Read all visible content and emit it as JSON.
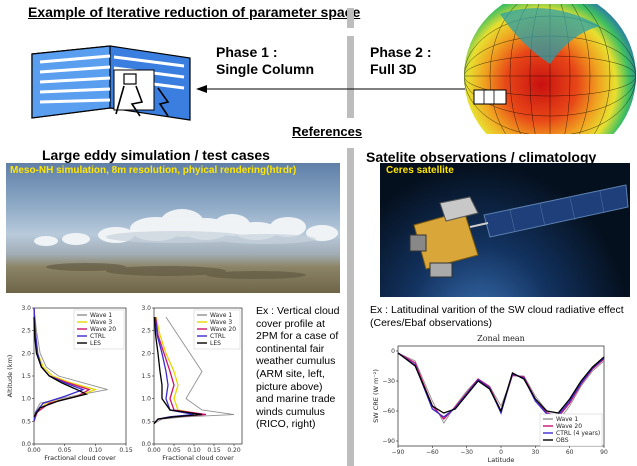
{
  "header": {
    "title": "Example of Iterative reduction of parameter space",
    "phase1_line1": "Phase 1 :",
    "phase1_line2": "Single Column",
    "phase2_line1": "Phase 2 :",
    "phase2_line2": "Full 3D",
    "references": "References"
  },
  "left": {
    "section_title": "Large eddy simulation / test cases",
    "photo_caption": "Meso-NH simulation, 8m resolution, phyical rendering(htrdr)",
    "description": "Ex : Vertical cloud cover profile at 2PM  for a case of continental fair weather cumulus (ARM site, left, picture above) and marine trade winds cumulus (RICO, right)"
  },
  "right": {
    "section_title": "Satelite observations / climatology",
    "photo_caption": "Ceres satellite",
    "description": "Ex : Latitudinal varition of the SW cloud radiative effect (Ceres/Ebaf observations)"
  },
  "colors": {
    "wave1": "#909090",
    "wave3": "#e8d800",
    "wave20": "#cc1070",
    "ctrl": "#3a2ad0",
    "les": "#000000",
    "obs": "#000000",
    "divider": "#bdbdbd"
  },
  "chart_data": [
    {
      "type": "line",
      "title": "",
      "xlabel": "Fractional cloud cover",
      "ylabel": "Altitude (km)",
      "xlim": [
        0,
        0.15
      ],
      "ylim": [
        0,
        3.0
      ],
      "xticks": [
        "0.00",
        "0.05",
        "0.10",
        "0.15"
      ],
      "yticks": [
        "0.0",
        "0.5",
        "1.0",
        "1.5",
        "2.0",
        "2.5",
        "3.0"
      ],
      "legend": [
        "Wave 1",
        "Wave 3",
        "Wave 20",
        "CTRL",
        "LES"
      ],
      "legend_position": "top-right",
      "series": [
        {
          "name": "Wave 1",
          "x": [
            0,
            0.002,
            0.01,
            0.06,
            0.12,
            0.08,
            0.04,
            0.02,
            0.01,
            0.004,
            0
          ],
          "y": [
            0.5,
            0.7,
            0.9,
            1.05,
            1.2,
            1.35,
            1.5,
            1.7,
            2.0,
            2.5,
            3.0
          ]
        },
        {
          "name": "Wave 3",
          "x": [
            0,
            0.004,
            0.02,
            0.07,
            0.1,
            0.06,
            0.03,
            0.015,
            0.006,
            0.002,
            0
          ],
          "y": [
            0.5,
            0.7,
            0.9,
            1.05,
            1.2,
            1.35,
            1.5,
            1.7,
            2.0,
            2.5,
            3.0
          ]
        },
        {
          "name": "Wave 20",
          "x": [
            0,
            0.005,
            0.025,
            0.07,
            0.09,
            0.055,
            0.025,
            0.012,
            0.005,
            0.002,
            0
          ],
          "y": [
            0.5,
            0.7,
            0.9,
            1.05,
            1.2,
            1.35,
            1.5,
            1.7,
            2.0,
            2.5,
            3.0
          ]
        },
        {
          "name": "CTRL",
          "x": [
            0,
            0.003,
            0.015,
            0.05,
            0.08,
            0.05,
            0.025,
            0.012,
            0.006,
            0.002,
            0
          ],
          "y": [
            0.5,
            0.7,
            0.9,
            1.05,
            1.2,
            1.35,
            1.5,
            1.7,
            2.0,
            2.5,
            3.0
          ]
        },
        {
          "name": "LES",
          "x": [
            0,
            0.01,
            0.04,
            0.085,
            0.07,
            0.045,
            0.025,
            0.012,
            0.004,
            0.001,
            0
          ],
          "y": [
            0.6,
            0.8,
            0.95,
            1.1,
            1.2,
            1.35,
            1.5,
            1.7,
            2.0,
            2.4,
            2.8
          ]
        }
      ]
    },
    {
      "type": "line",
      "title": "",
      "xlabel": "Fractional cloud cover",
      "ylabel": "",
      "xlim": [
        0,
        0.22
      ],
      "ylim": [
        0,
        3.0
      ],
      "xticks": [
        "0.00",
        "0.05",
        "0.10",
        "0.15",
        "0.20"
      ],
      "yticks": [
        "0.0",
        "0.5",
        "1.0",
        "1.5",
        "2.0",
        "2.5",
        "3.0"
      ],
      "legend": [
        "Wave 1",
        "Wave 3",
        "Wave 20",
        "CTRL",
        "LES"
      ],
      "legend_position": "top-right",
      "series": [
        {
          "name": "Wave 1",
          "x": [
            0,
            0.02,
            0.08,
            0.2,
            0.12,
            0.08,
            0.1,
            0.12,
            0.09,
            0.06,
            0.03
          ],
          "y": [
            0.45,
            0.55,
            0.6,
            0.65,
            0.75,
            1.0,
            1.3,
            1.6,
            2.0,
            2.4,
            2.8
          ]
        },
        {
          "name": "Wave 3",
          "x": [
            0,
            0.01,
            0.04,
            0.12,
            0.06,
            0.05,
            0.06,
            0.05,
            0.03,
            0.015,
            0.005
          ],
          "y": [
            0.45,
            0.55,
            0.6,
            0.65,
            0.75,
            1.0,
            1.3,
            1.6,
            2.0,
            2.4,
            2.8
          ]
        },
        {
          "name": "Wave 20",
          "x": [
            0,
            0.01,
            0.05,
            0.13,
            0.05,
            0.04,
            0.05,
            0.04,
            0.025,
            0.01,
            0.004
          ],
          "y": [
            0.45,
            0.55,
            0.6,
            0.65,
            0.75,
            1.0,
            1.3,
            1.6,
            2.0,
            2.4,
            2.8
          ]
        },
        {
          "name": "CTRL",
          "x": [
            0,
            0.01,
            0.04,
            0.1,
            0.04,
            0.03,
            0.035,
            0.03,
            0.02,
            0.008,
            0.003
          ],
          "y": [
            0.45,
            0.55,
            0.6,
            0.65,
            0.75,
            1.0,
            1.3,
            1.6,
            2.0,
            2.4,
            2.8
          ]
        },
        {
          "name": "LES",
          "x": [
            0,
            0.01,
            0.05,
            0.12,
            0.04,
            0.02,
            0.02,
            0.015,
            0.01,
            0.004,
            0.001
          ],
          "y": [
            0.45,
            0.55,
            0.6,
            0.65,
            0.75,
            1.0,
            1.3,
            1.6,
            2.0,
            2.4,
            2.8
          ]
        }
      ]
    },
    {
      "type": "line",
      "title": "Zonal mean",
      "xlabel": "Latitude",
      "ylabel": "SW CRE (W m⁻²)",
      "xlim": [
        -90,
        90
      ],
      "ylim": [
        -95,
        5
      ],
      "xticks": [
        "−90",
        "−60",
        "−30",
        "0",
        "30",
        "60",
        "90"
      ],
      "yticks": [
        "0",
        "−30",
        "−60",
        "−90"
      ],
      "legend": [
        "Wave 1",
        "Wave 20",
        "CTRL (4 years)",
        "OBS"
      ],
      "legend_position": "bottom-right",
      "series": [
        {
          "name": "Wave 1",
          "x": [
            -90,
            -75,
            -60,
            -50,
            -40,
            -30,
            -20,
            -10,
            0,
            10,
            20,
            30,
            40,
            50,
            60,
            70,
            80,
            90
          ],
          "y": [
            -2,
            -10,
            -50,
            -72,
            -55,
            -40,
            -28,
            -35,
            -55,
            -25,
            -25,
            -45,
            -60,
            -70,
            -55,
            -35,
            -20,
            -10
          ]
        },
        {
          "name": "Wave 20",
          "x": [
            -90,
            -75,
            -60,
            -50,
            -40,
            -30,
            -20,
            -10,
            0,
            10,
            20,
            30,
            40,
            50,
            60,
            70,
            80,
            90
          ],
          "y": [
            -2,
            -12,
            -55,
            -68,
            -56,
            -42,
            -28,
            -36,
            -60,
            -24,
            -26,
            -48,
            -62,
            -66,
            -52,
            -33,
            -18,
            -8
          ]
        },
        {
          "name": "CTRL (4 years)",
          "x": [
            -90,
            -75,
            -60,
            -50,
            -40,
            -30,
            -20,
            -10,
            0,
            10,
            20,
            30,
            40,
            50,
            60,
            70,
            80,
            90
          ],
          "y": [
            -2,
            -14,
            -58,
            -66,
            -57,
            -43,
            -29,
            -37,
            -62,
            -23,
            -27,
            -50,
            -63,
            -64,
            -50,
            -32,
            -17,
            -7
          ]
        },
        {
          "name": "OBS",
          "x": [
            -90,
            -75,
            -60,
            -50,
            -40,
            -30,
            -20,
            -10,
            0,
            10,
            20,
            30,
            40,
            50,
            60,
            70,
            80,
            90
          ],
          "y": [
            -2,
            -15,
            -55,
            -62,
            -58,
            -44,
            -30,
            -38,
            -60,
            -22,
            -28,
            -48,
            -60,
            -62,
            -48,
            -30,
            -16,
            -6
          ]
        }
      ]
    }
  ]
}
